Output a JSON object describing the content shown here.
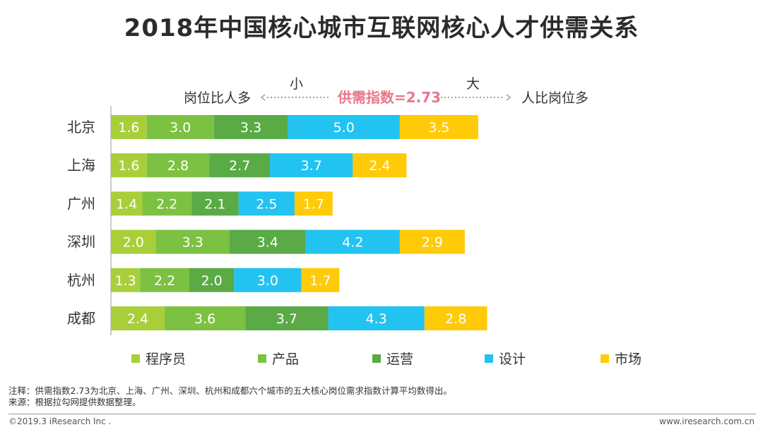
{
  "title": "2018年中国核心城市互联网核心人才供需关系",
  "direction": {
    "small": "小",
    "big": "大",
    "left_text": "岗位比人多",
    "right_text": "人比岗位多",
    "index_text": "供需指数=2.73",
    "index_color": "#e8788a"
  },
  "legend": [
    {
      "name": "程序员",
      "color": "#a8cf3a"
    },
    {
      "name": "产品",
      "color": "#7cc142"
    },
    {
      "name": "运营",
      "color": "#5aaa46"
    },
    {
      "name": "设计",
      "color": "#22c3f0"
    },
    {
      "name": "市场",
      "color": "#ffca08"
    }
  ],
  "chart_data": {
    "type": "bar",
    "orientation": "horizontal-stacked",
    "categories": [
      "北京",
      "上海",
      "广州",
      "深圳",
      "杭州",
      "成都"
    ],
    "series": [
      {
        "name": "程序员",
        "color": "#a8cf3a",
        "values": [
          1.6,
          1.6,
          1.4,
          2.0,
          1.3,
          2.4
        ]
      },
      {
        "name": "产品",
        "color": "#7cc142",
        "values": [
          3.0,
          2.8,
          2.2,
          3.3,
          2.2,
          3.6
        ]
      },
      {
        "name": "运营",
        "color": "#5aaa46",
        "values": [
          3.3,
          2.7,
          2.1,
          3.4,
          2.0,
          3.7
        ]
      },
      {
        "name": "设计",
        "color": "#22c3f0",
        "values": [
          5.0,
          3.7,
          2.5,
          4.2,
          3.0,
          4.3
        ]
      },
      {
        "name": "市场",
        "color": "#ffca08",
        "values": [
          3.5,
          2.4,
          1.7,
          2.9,
          1.7,
          2.8
        ]
      }
    ],
    "value_labels": [
      [
        "1.6",
        "3.0",
        "3.3",
        "5.0",
        "3.5"
      ],
      [
        "1.6",
        "2.8",
        "2.7",
        "3.7",
        "2.4"
      ],
      [
        "1.4",
        "2.2",
        "2.1",
        "2.5",
        "1.7"
      ],
      [
        "2.0",
        "3.3",
        "3.4",
        "4.2",
        "2.9"
      ],
      [
        "1.3",
        "2.2",
        "2.0",
        "3.0",
        "1.7"
      ],
      [
        "2.4",
        "3.6",
        "3.7",
        "4.3",
        "2.8"
      ]
    ],
    "title": "2018年中国核心城市互联网核心人才供需关系",
    "xlabel": "",
    "ylabel": "",
    "legend_position": "bottom"
  },
  "note": "注释：供需指数2.73为北京、上海、广州、深圳、杭州和成都六个城市的五大核心岗位需求指数计算平均数得出。",
  "source": "来源：根据拉勾网提供数据整理。",
  "footer_left": "©2019.3 iResearch Inc .",
  "footer_right": "www.iresearch.com.cn"
}
